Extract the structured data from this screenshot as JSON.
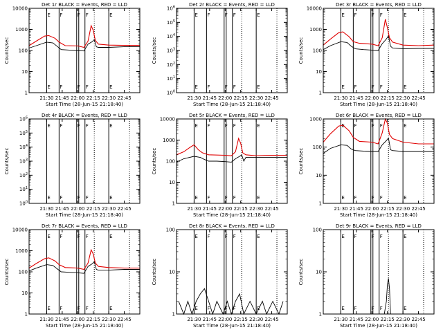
{
  "figure": {
    "colors": {
      "events": "#000000",
      "lld": "#e00000",
      "background": "#ffffff"
    },
    "time_axis": {
      "ticks": [
        "21:30",
        "21:45",
        "22:00",
        "22:15",
        "22:30",
        "22:45"
      ],
      "tick_minutes": [
        90,
        105,
        120,
        135,
        150,
        165
      ],
      "range_minutes": [
        73,
        180
      ],
      "xlabel": "Start Time (28-Jun-15 21:18:40)"
    },
    "ylabel": "Counts/sec",
    "vertical_markers": [
      {
        "t": 90,
        "style": "solid",
        "label": "E"
      },
      {
        "t": 102,
        "style": "solid",
        "label": "F"
      },
      {
        "t": 119,
        "style": "solid",
        "label": "F"
      },
      {
        "t": 121,
        "style": "solid",
        "label": ""
      },
      {
        "t": 127,
        "style": "solid",
        "label": "F"
      },
      {
        "t": 136,
        "style": "dotted",
        "label": ""
      },
      {
        "t": 150,
        "style": "solid",
        "label": "E"
      },
      {
        "t": 170,
        "style": "dotted",
        "label": ""
      }
    ]
  },
  "chart_data": [
    {
      "type": "line",
      "title": "Det 1r BLACK = Events, RED = LLD",
      "ylabel": "Counts/sec",
      "yscale": "log",
      "ylim": [
        1,
        10000
      ],
      "yticks": [
        "1",
        "10",
        "100",
        "1000",
        "10000"
      ],
      "grid": false,
      "series": [
        {
          "name": "Events",
          "color": "#000000",
          "x": [
            73,
            80,
            90,
            96,
            100,
            104,
            112,
            120,
            126,
            130,
            134,
            136,
            138,
            140,
            150,
            165,
            180
          ],
          "y": [
            130,
            170,
            250,
            230,
            160,
            110,
            105,
            100,
            95,
            200,
            260,
            330,
            150,
            140,
            140,
            150,
            150
          ]
        },
        {
          "name": "LLD",
          "color": "#e00000",
          "x": [
            73,
            80,
            88,
            92,
            98,
            102,
            108,
            120,
            126,
            130,
            133,
            135,
            137,
            140,
            150,
            165,
            180
          ],
          "y": [
            170,
            280,
            480,
            510,
            380,
            250,
            170,
            165,
            140,
            280,
            1500,
            900,
            300,
            200,
            180,
            175,
            175
          ]
        }
      ]
    },
    {
      "type": "line",
      "title": "Det 2r BLACK = Events, RED = LLD",
      "ylabel": "Counts/sec",
      "yscale": "log",
      "ylim": [
        1,
        1000000
      ],
      "yticks": [
        "10^0",
        "10^1",
        "10^2",
        "10^3",
        "10^4",
        "10^5",
        "10^6"
      ],
      "grid": false,
      "series": []
    },
    {
      "type": "line",
      "title": "Det 3r BLACK = Events, RED = LLD",
      "ylabel": "Counts/sec",
      "yscale": "log",
      "ylim": [
        1,
        10000
      ],
      "yticks": [
        "1",
        "10",
        "100",
        "1000",
        "10000"
      ],
      "grid": false,
      "series": [
        {
          "name": "Events",
          "color": "#000000",
          "x": [
            73,
            80,
            90,
            96,
            100,
            104,
            112,
            120,
            126,
            130,
            134,
            136,
            138,
            140,
            150,
            165,
            180
          ],
          "y": [
            110,
            170,
            260,
            240,
            160,
            120,
            110,
            105,
            100,
            210,
            350,
            500,
            160,
            130,
            120,
            125,
            125
          ]
        },
        {
          "name": "LLD",
          "color": "#e00000",
          "x": [
            73,
            80,
            88,
            92,
            98,
            102,
            108,
            120,
            126,
            130,
            133,
            135,
            137,
            140,
            150,
            165,
            180
          ],
          "y": [
            180,
            350,
            700,
            760,
            450,
            260,
            220,
            200,
            170,
            400,
            3000,
            1200,
            400,
            250,
            180,
            170,
            180
          ]
        }
      ]
    },
    {
      "type": "line",
      "title": "Det 4r BLACK = Events, RED = LLD",
      "ylabel": "Counts/sec",
      "yscale": "log",
      "ylim": [
        1,
        1000000
      ],
      "yticks": [
        "10^0",
        "10^1",
        "10^2",
        "10^3",
        "10^4",
        "10^5",
        "10^6"
      ],
      "grid": false,
      "series": []
    },
    {
      "type": "line",
      "title": "Det 5r BLACK = Events, RED = LLD",
      "ylabel": "Counts/sec",
      "yscale": "log",
      "ylim": [
        1,
        10000
      ],
      "yticks": [
        "1",
        "10",
        "100",
        "1000",
        "10000"
      ],
      "grid": false,
      "series": [
        {
          "name": "Events",
          "color": "#000000",
          "x": [
            73,
            80,
            90,
            96,
            100,
            104,
            112,
            120,
            126,
            130,
            134,
            136,
            138,
            140,
            150,
            165,
            180
          ],
          "y": [
            90,
            130,
            170,
            150,
            120,
            100,
            100,
            95,
            90,
            130,
            170,
            200,
            100,
            150,
            150,
            150,
            150
          ]
        },
        {
          "name": "LLD",
          "color": "#e00000",
          "x": [
            73,
            80,
            86,
            90,
            94,
            98,
            104,
            120,
            126,
            130,
            133,
            135,
            137,
            140,
            150,
            165,
            180
          ],
          "y": [
            200,
            280,
            450,
            600,
            350,
            250,
            200,
            190,
            180,
            280,
            1200,
            700,
            250,
            200,
            180,
            190,
            190
          ]
        }
      ]
    },
    {
      "type": "line",
      "title": "Det 6r BLACK = Events, RED = LLD",
      "ylabel": "Counts/sec",
      "yscale": "log",
      "ylim": [
        1,
        1000
      ],
      "yticks": [
        "1",
        "10",
        "100",
        "1000"
      ],
      "grid": false,
      "series": [
        {
          "name": "Events",
          "color": "#000000",
          "x": [
            73,
            80,
            90,
            96,
            100,
            104,
            112,
            120,
            126,
            130,
            134,
            136,
            138,
            140,
            150,
            165,
            180
          ],
          "y": [
            60,
            90,
            120,
            115,
            85,
            75,
            72,
            70,
            70,
            120,
            170,
            210,
            80,
            75,
            70,
            70,
            70
          ]
        },
        {
          "name": "LLD",
          "color": "#e00000",
          "x": [
            73,
            80,
            88,
            92,
            98,
            102,
            108,
            120,
            126,
            130,
            133,
            135,
            137,
            140,
            150,
            165,
            180
          ],
          "y": [
            150,
            300,
            560,
            600,
            380,
            220,
            160,
            150,
            130,
            320,
            1000,
            700,
            280,
            200,
            150,
            130,
            130
          ]
        }
      ]
    },
    {
      "type": "line",
      "title": "Det 7r BLACK = Events, RED = LLD",
      "ylabel": "Counts/sec",
      "yscale": "log",
      "ylim": [
        1,
        10000
      ],
      "yticks": [
        "1",
        "10",
        "100",
        "1000",
        "10000"
      ],
      "grid": false,
      "series": [
        {
          "name": "Events",
          "color": "#000000",
          "x": [
            73,
            80,
            90,
            96,
            100,
            104,
            112,
            120,
            126,
            130,
            134,
            136,
            138,
            140,
            150,
            165,
            180
          ],
          "y": [
            110,
            150,
            220,
            200,
            140,
            100,
            95,
            90,
            85,
            180,
            240,
            300,
            130,
            120,
            120,
            130,
            130
          ]
        },
        {
          "name": "LLD",
          "color": "#e00000",
          "x": [
            73,
            80,
            88,
            92,
            98,
            102,
            108,
            120,
            126,
            130,
            133,
            135,
            137,
            140,
            150,
            165,
            180
          ],
          "y": [
            150,
            250,
            420,
            460,
            330,
            220,
            160,
            150,
            130,
            260,
            1100,
            700,
            260,
            180,
            160,
            150,
            150
          ]
        }
      ]
    },
    {
      "type": "line",
      "title": "Det 8r BLACK = Events, RED = LLD",
      "ylabel": "Counts/sec",
      "yscale": "log",
      "ylim": [
        1,
        100
      ],
      "yticks": [
        "1",
        "10",
        "100"
      ],
      "grid": false,
      "series": [
        {
          "name": "Events",
          "color": "#000000",
          "x": [
            75,
            80,
            84,
            88,
            92,
            96,
            100,
            104,
            108,
            112,
            118,
            122,
            126,
            130,
            134,
            138,
            144,
            150,
            156,
            160,
            166,
            172,
            176
          ],
          "y": [
            2,
            1,
            2,
            1,
            2,
            3,
            4,
            2,
            1,
            2,
            1,
            2,
            1,
            2,
            3,
            1,
            2,
            1,
            2,
            1,
            2,
            1,
            2
          ]
        }
      ]
    },
    {
      "type": "line",
      "title": "Det 9r BLACK = Events, RED = LLD",
      "ylabel": "Counts/sec",
      "yscale": "log",
      "ylim": [
        1,
        100
      ],
      "yticks": [
        "1",
        "10",
        "100"
      ],
      "grid": false,
      "series": [
        {
          "name": "Events",
          "color": "#000000",
          "x": [
            130,
            132,
            134,
            135,
            136,
            137,
            138,
            140
          ],
          "y": [
            1,
            1,
            2,
            5,
            7,
            4,
            1,
            1
          ]
        }
      ]
    }
  ]
}
